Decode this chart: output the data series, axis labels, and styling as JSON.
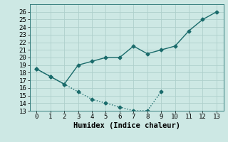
{
  "line1_x": [
    0,
    1,
    2,
    3,
    4,
    5,
    6,
    7,
    8,
    9,
    10,
    11,
    12,
    13
  ],
  "line1_y": [
    18.5,
    17.5,
    16.5,
    19.0,
    19.5,
    20.0,
    20.0,
    21.5,
    20.5,
    21.0,
    21.5,
    23.5,
    25.0,
    26.0
  ],
  "line2_x": [
    0,
    1,
    2,
    3,
    4,
    5,
    6,
    7,
    8,
    9
  ],
  "line2_y": [
    18.5,
    17.5,
    16.5,
    15.5,
    14.5,
    14.0,
    13.5,
    13.0,
    13.0,
    15.5
  ],
  "line_color": "#1a6b6b",
  "bg_color": "#cde8e4",
  "grid_color": "#aed0cc",
  "xlabel": "Humidex (Indice chaleur)",
  "xlim": [
    -0.5,
    13.5
  ],
  "ylim": [
    13,
    27
  ],
  "yticks": [
    13,
    14,
    15,
    16,
    17,
    18,
    19,
    20,
    21,
    22,
    23,
    24,
    25,
    26
  ],
  "xticks": [
    0,
    1,
    2,
    3,
    4,
    5,
    6,
    7,
    8,
    9,
    10,
    11,
    12,
    13
  ],
  "markersize": 2.5,
  "linewidth": 1.0,
  "xlabel_fontsize": 7.5,
  "tick_fontsize": 6.5
}
